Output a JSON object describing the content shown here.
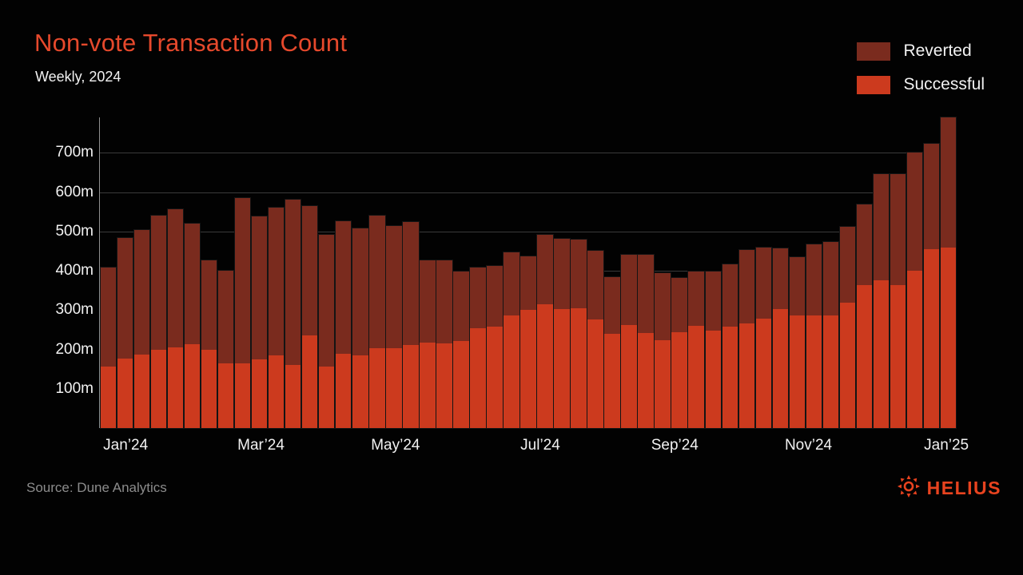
{
  "header": {
    "title": "Non-vote Transaction Count",
    "subtitle": "Weekly, 2024"
  },
  "legend": {
    "items": [
      {
        "label": "Reverted",
        "color": "#7a2b1e"
      },
      {
        "label": "Successful",
        "color": "#cc3a1e"
      }
    ]
  },
  "footer": {
    "source": "Source: Dune Analytics",
    "brand": "HELIUS"
  },
  "colors": {
    "background": "#020202",
    "title": "#e6492c",
    "text": "#f2f2f2",
    "muted_text": "#8c8c8c",
    "grid": "#3a3a3a",
    "axis": "#8f8f8f",
    "reverted": "#7a2b1e",
    "successful": "#cc3a1e",
    "brand": "#e8431f"
  },
  "chart_data": {
    "type": "bar",
    "stacked": true,
    "title": "Non-vote Transaction Count",
    "subtitle": "Weekly, 2024",
    "unit": "millions of transactions",
    "xlabel": "",
    "ylabel": "",
    "ylim": [
      0,
      790
    ],
    "grid": true,
    "legend_position": "top-right",
    "y_ticks": [
      {
        "value": 100,
        "label": "100m"
      },
      {
        "value": 200,
        "label": "200m"
      },
      {
        "value": 300,
        "label": "300m"
      },
      {
        "value": 400,
        "label": "400m"
      },
      {
        "value": 500,
        "label": "500m"
      },
      {
        "value": 600,
        "label": "600m"
      },
      {
        "value": 700,
        "label": "700m"
      }
    ],
    "x_ticks": [
      {
        "label": "Jan’24",
        "pos": 0.03
      },
      {
        "label": "Mar’24",
        "pos": 0.188
      },
      {
        "label": "May’24",
        "pos": 0.345
      },
      {
        "label": "Jul’24",
        "pos": 0.514
      },
      {
        "label": "Sep’24",
        "pos": 0.671
      },
      {
        "label": "Nov’24",
        "pos": 0.827
      },
      {
        "label": "Jan’25",
        "pos": 0.988
      }
    ],
    "x": "weeks 1-51 of 2024",
    "series": [
      {
        "name": "Successful",
        "color": "#cc3a1e",
        "values": [
          156,
          176,
          186,
          199,
          205,
          214,
          199,
          164,
          164,
          174,
          185,
          161,
          235,
          156,
          189,
          185,
          204,
          203,
          212,
          218,
          216,
          222,
          254,
          257,
          286,
          300,
          315,
          303,
          304,
          276,
          239,
          262,
          242,
          223,
          243,
          259,
          247,
          257,
          266,
          279,
          303,
          286,
          286,
          286,
          318,
          364,
          376,
          364,
          401,
          454,
          458
        ]
      },
      {
        "name": "Reverted",
        "color": "#7a2b1e",
        "values": [
          253,
          307,
          318,
          342,
          351,
          306,
          228,
          236,
          421,
          364,
          376,
          419,
          330,
          335,
          338,
          323,
          336,
          311,
          312,
          209,
          211,
          176,
          155,
          155,
          161,
          136,
          177,
          179,
          175,
          174,
          144,
          179,
          199,
          171,
          139,
          139,
          152,
          159,
          187,
          179,
          153,
          149,
          181,
          188,
          194,
          204,
          270,
          282,
          299,
          268,
          332
        ]
      }
    ]
  }
}
